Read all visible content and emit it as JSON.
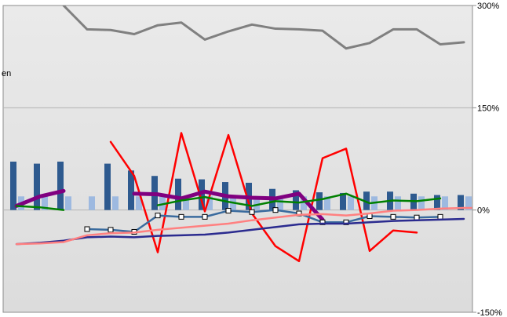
{
  "chart_data": {
    "type": "line",
    "ylim": [
      -150,
      300
    ],
    "y_ticks": [
      "300%",
      "150%",
      "0%",
      "-150%"
    ],
    "y_tick_values": [
      300,
      150,
      0,
      -150
    ],
    "y_axis_side": "right",
    "grid": "horizontal",
    "side_label": "en",
    "bar_series": [
      {
        "color": "#2E5A8F",
        "values": [
          71,
          68,
          71,
          null,
          68,
          58,
          50,
          46,
          45,
          41,
          40,
          31,
          29,
          26,
          25,
          27,
          27,
          24,
          22,
          22,
          21,
          21
        ]
      },
      {
        "color": "#9DB9E0",
        "values": [
          20,
          21,
          20,
          20,
          20,
          20,
          20,
          20,
          20,
          20,
          20,
          20,
          20,
          20,
          20,
          20,
          20,
          20,
          20,
          20,
          20,
          20
        ]
      }
    ],
    "line_series": [
      {
        "color": "#808080",
        "width": 3,
        "values": [
          null,
          null,
          300,
          265,
          264,
          258,
          271,
          275,
          250,
          262,
          272,
          266,
          265,
          263,
          237,
          245,
          265,
          265,
          243,
          246
        ]
      },
      {
        "color": "#FF0000",
        "width": 2.5,
        "values": [
          null,
          null,
          null,
          null,
          100,
          50,
          -62,
          113,
          -2,
          110,
          -5,
          -53,
          -75,
          76,
          90,
          -60,
          -30,
          -33
        ]
      },
      {
        "color": "#800080",
        "width": 5,
        "values": [
          6,
          20,
          28,
          null,
          null,
          24,
          23,
          17,
          27,
          20,
          18,
          17,
          24,
          -14
        ]
      },
      {
        "color": "#008000",
        "width": 2.5,
        "values": [
          6,
          4,
          0,
          null,
          null,
          null,
          7,
          14,
          19,
          12,
          6,
          13,
          11,
          16,
          24,
          10,
          14,
          13,
          17
        ]
      },
      {
        "color": "#3A6B9E",
        "width": 2.5,
        "marker": "square",
        "values": [
          null,
          null,
          null,
          -28,
          -29,
          -32,
          -8,
          -10,
          -10,
          -1,
          -3,
          0,
          -5,
          -18,
          -18,
          -9,
          -10,
          -11,
          -10
        ]
      },
      {
        "color": "#2B2B8F",
        "width": 2.5,
        "values": [
          -50,
          -48,
          -45,
          -40,
          -39,
          -40,
          -38,
          -37,
          -36,
          -33,
          -29,
          -25,
          -21,
          -20,
          -20,
          -18,
          -16,
          -15,
          -14,
          -13
        ]
      },
      {
        "color": "#FF8080",
        "width": 2.5,
        "values": [
          -50,
          -49,
          -47,
          -37,
          -34,
          -33,
          -29,
          -26,
          -23,
          -20,
          -15,
          -11,
          -7,
          -6,
          -8,
          -5,
          -1,
          0,
          2,
          3,
          3
        ]
      }
    ]
  }
}
